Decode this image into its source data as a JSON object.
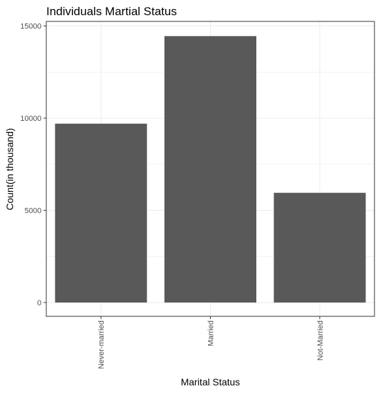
{
  "chart_data": {
    "type": "bar",
    "title": "Individuals Martial Status",
    "xlabel": "Marital Status",
    "ylabel": "Count(in thousand)",
    "categories": [
      "Never-married",
      "Married",
      "Not-Married"
    ],
    "values": [
      9700,
      14450,
      5950
    ],
    "ylim": [
      0,
      15000
    ],
    "yticks": [
      0,
      5000,
      10000,
      15000
    ],
    "grid": true,
    "bar_color": "#595959",
    "grid_color": "#ebebeb",
    "panel_border_color": "#333333"
  }
}
